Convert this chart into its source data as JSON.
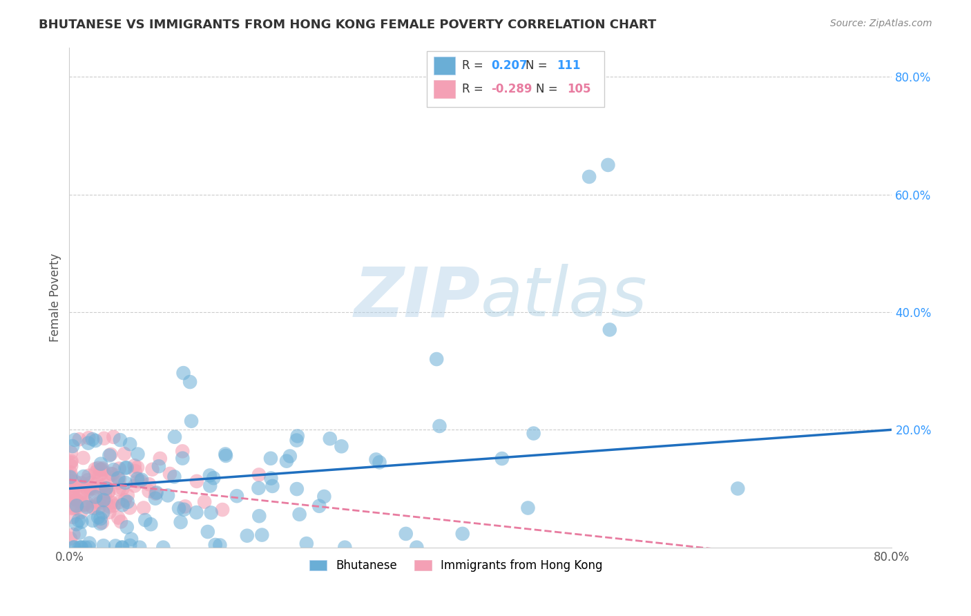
{
  "title": "BHUTANESE VS IMMIGRANTS FROM HONG KONG FEMALE POVERTY CORRELATION CHART",
  "source": "Source: ZipAtlas.com",
  "ylabel": "Female Poverty",
  "legend_label1": "Bhutanese",
  "legend_label2": "Immigrants from Hong Kong",
  "R1": 0.207,
  "N1": 111,
  "R2": -0.289,
  "N2": 105,
  "color_blue": "#6aaed6",
  "color_pink": "#f4a0b5",
  "color_blue_line": "#1f6fbf",
  "color_pink_line": "#e87ca0",
  "watermark_zip": "ZIP",
  "watermark_atlas": "atlas",
  "xmin": 0.0,
  "xmax": 0.8,
  "ymin": 0.0,
  "ymax": 0.85,
  "seed": 42
}
